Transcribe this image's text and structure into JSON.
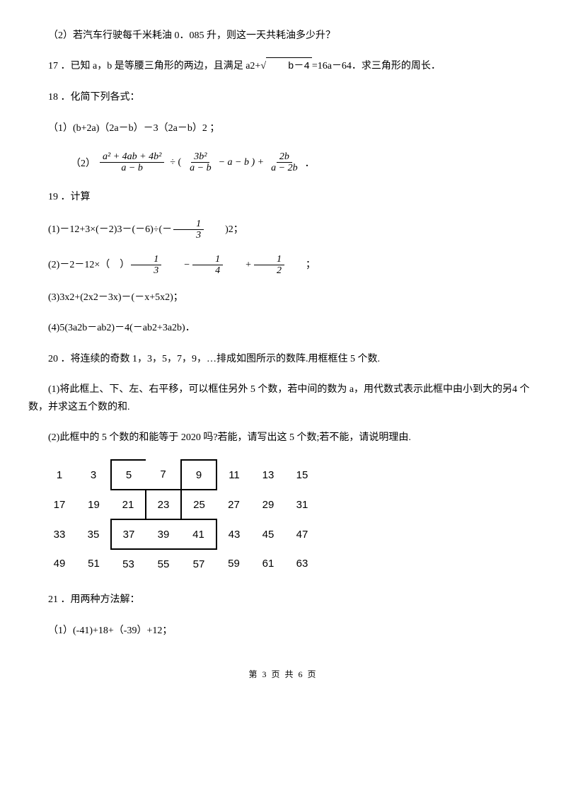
{
  "q16_2": "（2）若汽车行驶每千米耗油 0．085 升，则这一天共耗油多少升？",
  "q17": {
    "pre": "17 ．已知 a，b 是等腰三角形的两边，且满足 a2+",
    "sqrt": "b－4",
    "post": "=16a－64．求三角形的周长．"
  },
  "q18": "18 ．化简下列各式：",
  "q18_1": "（1）(b+2a)（2a－b）－3（2a－b）2 ；",
  "q18_2": {
    "label": "（2）",
    "f1n": "a² + 4ab + 4b²",
    "f1d": "a − b",
    "op1": "÷ (",
    "f2n": "3b²",
    "f2d": "a − b",
    "mid": "− a − b ) +",
    "f3n": "2b",
    "f3d": "a − 2b",
    "end": "．"
  },
  "q19": "19 ．计算",
  "q19_1": {
    "pre": "(1)－12+3×(－2)3－(－6)÷(－",
    "fn": "1",
    "fd": "3",
    "post": ")2；"
  },
  "q19_2": {
    "pre": "(2)－2－12×（　）",
    "fa_n": "1",
    "fa_d": "3",
    "m1": "−",
    "fb_n": "1",
    "fb_d": "4",
    "m2": "+",
    "fc_n": "1",
    "fc_d": "2",
    "post": "；"
  },
  "q19_3": "(3)3x2+(2x2－3x)－(－x+5x2)；",
  "q19_4": "(4)5(3a2b－ab2)－4(－ab2+3a2b)．",
  "q20": "20 ．将连续的奇数 1，3，5，7，9，…排成如图所示的数阵.用框框住 5 个数.",
  "q20_1": "(1)将此框上、下、左、右平移，可以框住另外 5 个数，若中间的数为 a，用代数式表示此框中由小到大的另4 个数，并求这五个数的和.",
  "q20_2": "(2)此框中的 5 个数的和能等于 2020 吗?若能，请写出这 5 个数;若不能，请说明理由.",
  "grid": [
    [
      "1",
      "3",
      "5",
      "7",
      "9",
      "11",
      "13",
      "15"
    ],
    [
      "17",
      "19",
      "21",
      "23",
      "25",
      "27",
      "29",
      "31"
    ],
    [
      "33",
      "35",
      "37",
      "39",
      "41",
      "43",
      "45",
      "47"
    ],
    [
      "49",
      "51",
      "53",
      "55",
      "57",
      "59",
      "61",
      "63"
    ]
  ],
  "q21": "21 ．用两种方法解：",
  "q21_1": "（1）(-41)+18+（-39）+12；",
  "footer": "第 3 页 共 6 页"
}
